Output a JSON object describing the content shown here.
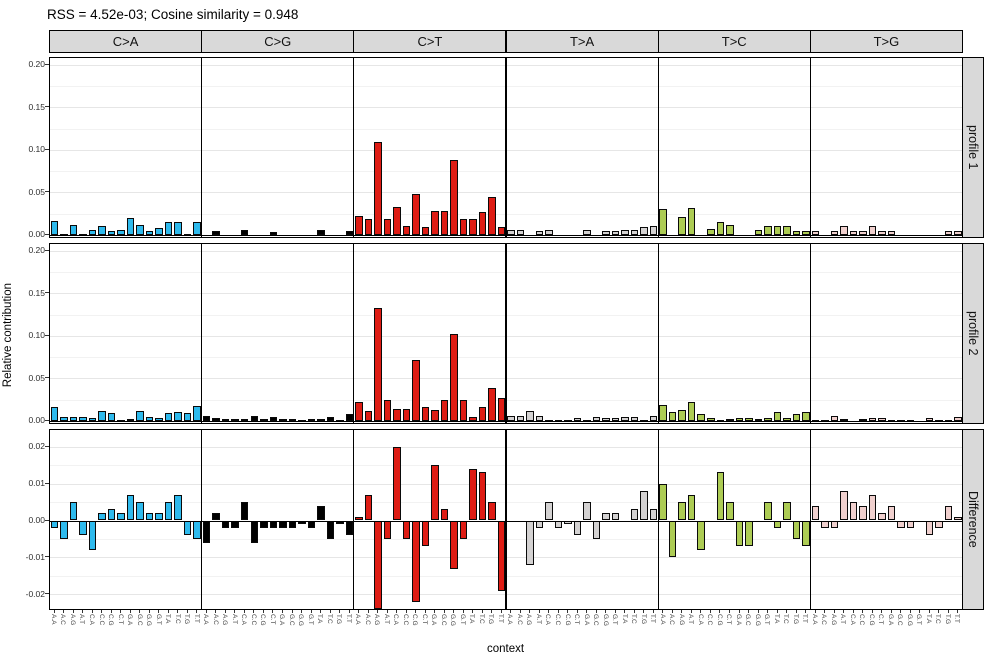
{
  "title": "RSS = 4.52e-03; Cosine similarity = 0.948",
  "colors": {
    "strip_background": "#d9d9d9",
    "panel_background": "#ffffff",
    "major_gridline": "#e6e6e6",
    "minor_gridline": "#f2f2f2",
    "bar_outline": "#0a0a0a"
  },
  "chart_data": {
    "type": "bar",
    "title": "RSS = 4.52e-03; Cosine similarity = 0.948",
    "xlabel": "context",
    "ylabel": "Relative contribution",
    "grid": true,
    "legend": "none",
    "facet_columns": [
      "C>A",
      "C>G",
      "C>T",
      "T>A",
      "T>C",
      "T>G"
    ],
    "palette": {
      "C>A": "#2EBAED",
      "C>G": "#000000",
      "C>T": "#DE1C14",
      "T>A": "#D4D2D2",
      "T>C": "#ADCC54",
      "T>G": "#F0D0CE"
    },
    "categories": [
      "A.A",
      "A.C",
      "A.G",
      "A.T",
      "C.A",
      "C.C",
      "C.G",
      "C.T",
      "G.A",
      "G.C",
      "G.G",
      "G.T",
      "T.A",
      "T.C",
      "T.G",
      "T.T"
    ],
    "facet_rows": [
      {
        "label": "profile 1",
        "ylim": [
          0,
          0.2
        ],
        "ticks": [
          0,
          0.05,
          0.1,
          0.15,
          0.2
        ],
        "tick_labels": [
          "0.00",
          "0.05",
          "0.10",
          "0.15",
          "0.20"
        ]
      },
      {
        "label": "profile 2",
        "ylim": [
          0,
          0.2
        ],
        "ticks": [
          0,
          0.05,
          0.1,
          0.15,
          0.2
        ],
        "tick_labels": [
          "0.00",
          "0.05",
          "0.10",
          "0.15",
          "0.20"
        ]
      },
      {
        "label": "Difference",
        "ylim": [
          -0.02,
          0.02
        ],
        "ticks": [
          -0.02,
          -0.01,
          0,
          0.01,
          0.02
        ],
        "tick_labels": [
          "-0.02",
          "-0.01",
          "0.00",
          "0.01",
          "0.02"
        ]
      }
    ],
    "series": [
      {
        "name": "profile 1",
        "values": {
          "C>A": [
            0.016,
            0.001,
            0.011,
            0.001,
            0.006,
            0.01,
            0.005,
            0.006,
            0.02,
            0.011,
            0.005,
            0.008,
            0.015,
            0.015,
            0.001,
            0.015
          ],
          "C>G": [
            0.0,
            0.005,
            0.0,
            0.0,
            0.006,
            0.0,
            0.0,
            0.003,
            0.0,
            0.0,
            0.0,
            0.0,
            0.006,
            0.0,
            0.0,
            0.004
          ],
          "C>T": [
            0.022,
            0.018,
            0.109,
            0.019,
            0.033,
            0.01,
            0.048,
            0.009,
            0.028,
            0.028,
            0.088,
            0.019,
            0.019,
            0.027,
            0.044,
            0.009
          ],
          "T>A": [
            0.006,
            0.006,
            0.0,
            0.005,
            0.006,
            0.0,
            0.0,
            0.0,
            0.006,
            0.0,
            0.005,
            0.005,
            0.006,
            0.006,
            0.009,
            0.01
          ],
          "T>C": [
            0.03,
            0.0,
            0.021,
            0.031,
            0.0,
            0.007,
            0.015,
            0.011,
            0.0,
            0.0,
            0.006,
            0.01,
            0.01,
            0.01,
            0.005,
            0.005
          ],
          "T>G": [
            0.005,
            0.0,
            0.005,
            0.01,
            0.005,
            0.005,
            0.01,
            0.005,
            0.005,
            0.0,
            0.0,
            0.0,
            0.0,
            0.0,
            0.005,
            0.005
          ]
        }
      },
      {
        "name": "profile 2",
        "values": {
          "C>A": [
            0.016,
            0.005,
            0.005,
            0.004,
            0.003,
            0.012,
            0.009,
            0.001,
            0.002,
            0.012,
            0.005,
            0.003,
            0.009,
            0.01,
            0.009,
            0.017
          ],
          "C>G": [
            0.006,
            0.003,
            0.002,
            0.002,
            0.002,
            0.006,
            0.002,
            0.005,
            0.002,
            0.002,
            0.001,
            0.002,
            0.002,
            0.005,
            0.001,
            0.008
          ],
          "C>T": [
            0.022,
            0.012,
            0.133,
            0.024,
            0.014,
            0.014,
            0.071,
            0.016,
            0.013,
            0.025,
            0.102,
            0.024,
            0.005,
            0.016,
            0.039,
            0.027
          ],
          "T>A": [
            0.006,
            0.006,
            0.012,
            0.006,
            0.001,
            0.001,
            0.001,
            0.003,
            0.001,
            0.004,
            0.003,
            0.003,
            0.005,
            0.005,
            0.001,
            0.006
          ],
          "T>C": [
            0.019,
            0.01,
            0.013,
            0.022,
            0.008,
            0.003,
            0.001,
            0.002,
            0.003,
            0.003,
            0.002,
            0.003,
            0.01,
            0.003,
            0.008,
            0.01
          ],
          "T>G": [
            0.001,
            0.001,
            0.006,
            0.002,
            0.0,
            0.002,
            0.003,
            0.003,
            0.001,
            0.001,
            0.001,
            0.0,
            0.003,
            0.001,
            0.001,
            0.004
          ]
        }
      },
      {
        "name": "Difference",
        "values": {
          "C>A": [
            -0.002,
            -0.005,
            0.005,
            -0.004,
            -0.008,
            0.002,
            0.003,
            0.002,
            0.007,
            0.005,
            0.002,
            0.002,
            0.005,
            0.007,
            -0.004,
            -0.005
          ],
          "C>G": [
            -0.006,
            0.002,
            -0.002,
            -0.002,
            0.005,
            -0.006,
            -0.002,
            -0.002,
            -0.002,
            -0.002,
            -0.001,
            -0.002,
            0.004,
            -0.005,
            -0.001,
            -0.004
          ],
          "C>T": [
            0.001,
            0.007,
            -0.024,
            -0.005,
            0.02,
            -0.005,
            -0.022,
            -0.007,
            0.015,
            0.003,
            -0.013,
            -0.005,
            0.014,
            0.013,
            0.005,
            -0.019
          ],
          "T>A": [
            0.0,
            0.0,
            -0.012,
            -0.002,
            0.005,
            -0.002,
            -0.001,
            -0.004,
            0.005,
            -0.005,
            0.002,
            0.002,
            0.0,
            0.003,
            0.008,
            0.003
          ],
          "T>C": [
            0.01,
            -0.01,
            0.005,
            0.007,
            -0.008,
            0.0,
            0.013,
            0.005,
            -0.007,
            -0.007,
            0.0,
            0.005,
            -0.002,
            0.005,
            -0.005,
            -0.007
          ],
          "T>G": [
            0.004,
            -0.002,
            -0.002,
            0.008,
            0.005,
            0.004,
            0.007,
            0.002,
            0.004,
            -0.002,
            -0.002,
            0.0,
            -0.004,
            -0.002,
            0.004,
            0.001
          ]
        }
      }
    ]
  }
}
